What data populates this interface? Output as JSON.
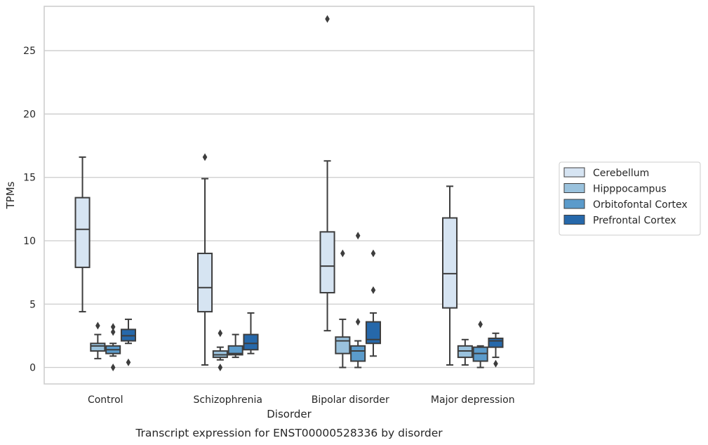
{
  "chart_data": {
    "type": "box",
    "caption": "Transcript expression for ENST00000528336 by disorder",
    "xlabel": "Disorder",
    "ylabel": "TPMs",
    "ylim": [
      -1.3,
      28.5
    ],
    "yticks": [
      0,
      5,
      10,
      15,
      20,
      25
    ],
    "grid": true,
    "legend_position": "right",
    "categories": [
      "Control",
      "Schizophrenia",
      "Bipolar disorder",
      "Major depression"
    ],
    "series": [
      {
        "name": "Cerebellum",
        "color": "#d6e4f2",
        "boxes": [
          {
            "whislo": 4.4,
            "q1": 7.9,
            "med": 10.9,
            "q3": 13.4,
            "whishi": 16.6,
            "fliers": []
          },
          {
            "whislo": 0.2,
            "q1": 4.4,
            "med": 6.3,
            "q3": 9.0,
            "whishi": 14.9,
            "fliers": [
              16.6
            ]
          },
          {
            "whislo": 2.9,
            "q1": 5.9,
            "med": 8.0,
            "q3": 10.7,
            "whishi": 16.3,
            "fliers": [
              27.5
            ]
          },
          {
            "whislo": 0.2,
            "q1": 4.7,
            "med": 7.4,
            "q3": 11.8,
            "whishi": 14.3,
            "fliers": []
          }
        ]
      },
      {
        "name": "Hipppocampus",
        "color": "#9ac2dd",
        "boxes": [
          {
            "whislo": 0.7,
            "q1": 1.3,
            "med": 1.7,
            "q3": 1.9,
            "whishi": 2.6,
            "fliers": [
              3.3
            ]
          },
          {
            "whislo": 0.6,
            "q1": 0.8,
            "med": 1.0,
            "q3": 1.3,
            "whishi": 1.6,
            "fliers": [
              2.7,
              0.0
            ]
          },
          {
            "whislo": 0.0,
            "q1": 1.1,
            "med": 2.1,
            "q3": 2.4,
            "whishi": 3.8,
            "fliers": [
              9.0
            ]
          },
          {
            "whislo": 0.2,
            "q1": 0.8,
            "med": 1.3,
            "q3": 1.7,
            "whishi": 2.2,
            "fliers": []
          }
        ]
      },
      {
        "name": "Orbitofontal Cortex",
        "color": "#5b9bcb",
        "boxes": [
          {
            "whislo": 0.9,
            "q1": 1.1,
            "med": 1.4,
            "q3": 1.7,
            "whishi": 1.9,
            "fliers": [
              3.2,
              2.8,
              0.0
            ]
          },
          {
            "whislo": 0.8,
            "q1": 1.0,
            "med": 1.1,
            "q3": 1.7,
            "whishi": 2.6,
            "fliers": []
          },
          {
            "whislo": 0.0,
            "q1": 0.5,
            "med": 1.3,
            "q3": 1.7,
            "whishi": 2.1,
            "fliers": [
              10.4,
              3.6
            ]
          },
          {
            "whislo": 0.0,
            "q1": 0.5,
            "med": 1.1,
            "q3": 1.6,
            "whishi": 1.7,
            "fliers": [
              3.4
            ]
          }
        ]
      },
      {
        "name": "Prefrontal Cortex",
        "color": "#2668aa",
        "boxes": [
          {
            "whislo": 1.9,
            "q1": 2.1,
            "med": 2.5,
            "q3": 3.0,
            "whishi": 3.8,
            "fliers": [
              0.4
            ]
          },
          {
            "whislo": 1.1,
            "q1": 1.4,
            "med": 1.9,
            "q3": 2.6,
            "whishi": 4.3,
            "fliers": []
          },
          {
            "whislo": 0.9,
            "q1": 1.9,
            "med": 2.2,
            "q3": 3.6,
            "whishi": 4.3,
            "fliers": [
              9.0,
              6.1
            ]
          },
          {
            "whislo": 0.8,
            "q1": 1.6,
            "med": 2.1,
            "q3": 2.3,
            "whishi": 2.7,
            "fliers": [
              0.3
            ]
          }
        ]
      }
    ]
  }
}
